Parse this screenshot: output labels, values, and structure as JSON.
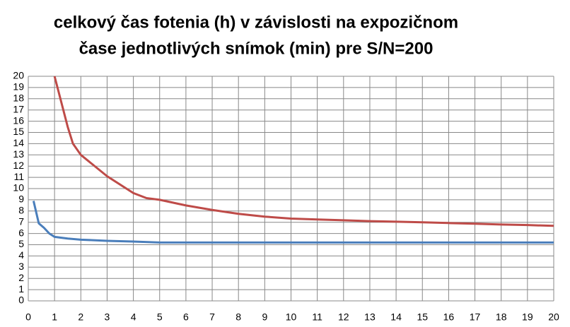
{
  "chart_data": {
    "type": "line",
    "title": [
      "celkový čas fotenia (h) v závislosti na expozičnom",
      "čase jednotlivých snímok (min) pre S/N=200"
    ],
    "series": [
      {
        "color": "#4a7ebb",
        "x": [
          0.2,
          0.4,
          0.6,
          0.8,
          1,
          1.5,
          2,
          3,
          4,
          5,
          6,
          8,
          10,
          12,
          14,
          16,
          18,
          20
        ],
        "values": [
          8.9,
          6.9,
          6.5,
          6.0,
          5.7,
          5.55,
          5.45,
          5.35,
          5.28,
          5.2,
          5.2,
          5.2,
          5.2,
          5.2,
          5.2,
          5.2,
          5.2,
          5.2
        ]
      },
      {
        "color": "#be4b48",
        "x": [
          1,
          1.5,
          1.7,
          2,
          3,
          4,
          4.5,
          5,
          6,
          7,
          8,
          9,
          10,
          11,
          12,
          13,
          14,
          15,
          16,
          17,
          18,
          19,
          20
        ],
        "values": [
          20,
          15.5,
          14,
          13,
          11.1,
          9.6,
          9.15,
          9,
          8.5,
          8.1,
          7.75,
          7.5,
          7.33,
          7.25,
          7.18,
          7.1,
          7.05,
          7.0,
          6.93,
          6.87,
          6.8,
          6.75,
          6.68
        ]
      }
    ],
    "xlim": [
      0,
      20
    ],
    "xticks": [
      0,
      1,
      2,
      3,
      4,
      5,
      6,
      7,
      8,
      9,
      10,
      11,
      12,
      13,
      14,
      15,
      16,
      17,
      18,
      19,
      20
    ],
    "ylim": [
      0,
      20
    ],
    "yticks": [
      0,
      1,
      2,
      3,
      4,
      5,
      6,
      7,
      8,
      9,
      10,
      11,
      12,
      13,
      14,
      15,
      16,
      17,
      18,
      19,
      20
    ],
    "grid": true
  }
}
